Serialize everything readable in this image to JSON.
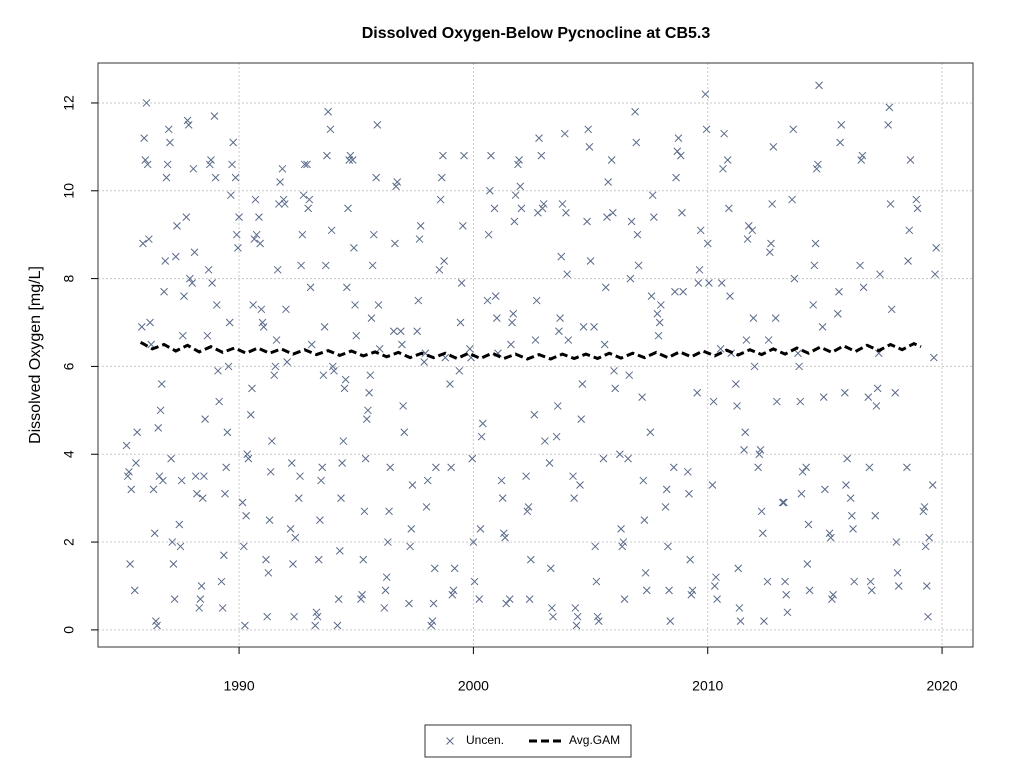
{
  "chart_data": {
    "type": "scatter",
    "title": "Dissolved Oxygen-Below Pycnocline at CB5.3",
    "y_label": "Dissolved Oxygen [mg/L]",
    "xlim": [
      1983.98,
      2021.32
    ],
    "ylim": [
      -0.39,
      12.91
    ],
    "xticks": [
      1990,
      2000,
      2010,
      2020
    ],
    "yticks": [
      0,
      2,
      4,
      6,
      8,
      10,
      12
    ],
    "grid": true,
    "legend": "bottom",
    "series": [
      {
        "name": "Uncen.",
        "color": "#5a6a8a",
        "marker": "x",
        "x": [
          1985.2,
          1985.25,
          1985.3,
          1985.35,
          1985.4,
          1985.55,
          1985.6,
          1985.65,
          1985.85,
          1985.9,
          1985.95,
          1986.0,
          1986.05,
          1986.1,
          1986.15,
          1986.2,
          1986.25,
          1986.35,
          1986.4,
          1986.45,
          1986.5,
          1986.55,
          1986.6,
          1986.65,
          1986.7,
          1986.75,
          1986.8,
          1986.85,
          1986.9,
          1986.95,
          1987.0,
          1987.05,
          1987.1,
          1987.15,
          1987.2,
          1987.25,
          1987.3,
          1987.35,
          1987.45,
          1987.5,
          1987.55,
          1987.6,
          1987.65,
          1987.75,
          1987.8,
          1987.85,
          1987.9,
          1988.0,
          1988.05,
          1988.1,
          1988.15,
          1988.2,
          1988.3,
          1988.35,
          1988.4,
          1988.45,
          1988.5,
          1988.55,
          1988.65,
          1988.7,
          1988.75,
          1988.8,
          1988.85,
          1988.95,
          1989.0,
          1989.05,
          1989.1,
          1989.15,
          1989.25,
          1989.3,
          1989.35,
          1989.4,
          1989.45,
          1989.5,
          1989.55,
          1989.6,
          1989.65,
          1989.7,
          1989.75,
          1989.85,
          1989.9,
          1989.95,
          1990.0,
          1990.15,
          1990.2,
          1990.25,
          1990.3,
          1990.35,
          1990.4,
          1990.5,
          1990.55,
          1990.6,
          1990.65,
          1990.7,
          1990.75,
          1990.85,
          1990.9,
          1990.95,
          1991.0,
          1991.05,
          1991.15,
          1991.2,
          1991.25,
          1991.3,
          1991.35,
          1991.4,
          1991.5,
          1991.55,
          1991.6,
          1991.65,
          1991.7,
          1991.75,
          1991.85,
          1991.9,
          1991.95,
          1992.0,
          1992.05,
          1992.2,
          1992.25,
          1992.3,
          1992.35,
          1992.4,
          1992.55,
          1992.6,
          1992.65,
          1992.7,
          1992.75,
          1992.8,
          1992.9,
          1992.95,
          1993.0,
          1993.05,
          1993.1,
          1993.25,
          1993.3,
          1993.35,
          1993.4,
          1993.45,
          1993.5,
          1993.55,
          1993.6,
          1993.65,
          1993.7,
          1993.75,
          1993.8,
          1993.9,
          1993.95,
          1994.0,
          1994.05,
          1994.2,
          1994.25,
          1994.3,
          1994.35,
          1994.4,
          1994.45,
          1994.5,
          1994.55,
          1994.6,
          1994.65,
          1994.7,
          1994.75,
          1994.85,
          1994.9,
          1994.95,
          1995.0,
          1995.2,
          1995.25,
          1995.3,
          1995.35,
          1995.4,
          1995.45,
          1995.5,
          1995.55,
          1995.6,
          1995.65,
          1995.7,
          1995.75,
          1995.85,
          1995.9,
          1995.95,
          1996.0,
          1996.2,
          1996.25,
          1996.3,
          1996.35,
          1996.4,
          1996.45,
          1996.6,
          1996.65,
          1996.7,
          1996.75,
          1996.9,
          1996.95,
          1997.0,
          1997.05,
          1997.25,
          1997.3,
          1997.35,
          1997.4,
          1997.6,
          1997.65,
          1997.7,
          1997.75,
          1997.9,
          1997.95,
          1998.0,
          1998.05,
          1998.2,
          1998.25,
          1998.3,
          1998.35,
          1998.4,
          1998.55,
          1998.6,
          1998.65,
          1998.7,
          1998.75,
          1998.8,
          1999.0,
          1999.05,
          1999.1,
          1999.15,
          1999.2,
          1999.4,
          1999.45,
          1999.5,
          1999.55,
          1999.6,
          1999.85,
          1999.9,
          1999.95,
          2000.0,
          2000.05,
          2000.25,
          2000.3,
          2000.35,
          2000.4,
          2000.6,
          2000.65,
          2000.7,
          2000.75,
          2000.9,
          2000.95,
          2001.0,
          2001.05,
          2001.2,
          2001.25,
          2001.3,
          2001.35,
          2001.4,
          2001.55,
          2001.6,
          2001.65,
          2001.7,
          2001.75,
          2001.8,
          2001.9,
          2001.95,
          2002.0,
          2002.05,
          2002.25,
          2002.3,
          2002.35,
          2002.4,
          2002.45,
          2002.6,
          2002.65,
          2002.7,
          2002.75,
          2002.8,
          2002.9,
          2002.95,
          2003.0,
          2003.05,
          2003.25,
          2003.3,
          2003.35,
          2003.4,
          2003.55,
          2003.6,
          2003.65,
          2003.7,
          2003.75,
          2003.8,
          2003.9,
          2003.95,
          2004.0,
          2004.05,
          2004.25,
          2004.3,
          2004.35,
          2004.4,
          2004.45,
          2004.55,
          2004.6,
          2004.65,
          2004.7,
          2004.85,
          2004.9,
          2004.95,
          2005.0,
          2005.15,
          2005.2,
          2005.25,
          2005.3,
          2005.35,
          2005.55,
          2005.6,
          2005.65,
          2005.7,
          2005.75,
          2005.9,
          2005.95,
          2006.0,
          2006.05,
          2006.25,
          2006.3,
          2006.35,
          2006.4,
          2006.45,
          2006.6,
          2006.65,
          2006.7,
          2006.75,
          2006.9,
          2006.95,
          2007.0,
          2007.05,
          2007.2,
          2007.25,
          2007.3,
          2007.35,
          2007.4,
          2007.55,
          2007.6,
          2007.65,
          2007.7,
          2007.85,
          2007.9,
          2007.95,
          2008.0,
          2008.2,
          2008.25,
          2008.3,
          2008.35,
          2008.4,
          2008.55,
          2008.6,
          2008.65,
          2008.7,
          2008.75,
          2008.85,
          2008.9,
          2008.95,
          2009.15,
          2009.2,
          2009.25,
          2009.3,
          2009.35,
          2009.55,
          2009.6,
          2009.65,
          2009.7,
          2009.9,
          2009.95,
          2010.0,
          2010.05,
          2010.2,
          2010.25,
          2010.3,
          2010.35,
          2010.4,
          2010.55,
          2010.6,
          2010.65,
          2010.7,
          2010.85,
          2010.9,
          2010.95,
          2011.0,
          2011.2,
          2011.25,
          2011.3,
          2011.35,
          2011.4,
          2011.55,
          2011.6,
          2011.65,
          2011.7,
          2011.75,
          2011.9,
          2011.95,
          2012.0,
          2012.15,
          2012.2,
          2012.25,
          2012.3,
          2012.35,
          2012.4,
          2012.55,
          2012.6,
          2012.65,
          2012.7,
          2012.75,
          2012.8,
          2012.9,
          2012.95,
          2013.2,
          2013.25,
          2013.3,
          2013.35,
          2013.4,
          2013.6,
          2013.65,
          2013.7,
          2013.85,
          2013.9,
          2013.95,
          2014.0,
          2014.05,
          2014.2,
          2014.25,
          2014.3,
          2014.35,
          2014.5,
          2014.55,
          2014.6,
          2014.65,
          2014.7,
          2014.75,
          2014.9,
          2014.95,
          2015.0,
          2015.2,
          2015.25,
          2015.3,
          2015.35,
          2015.55,
          2015.6,
          2015.65,
          2015.7,
          2015.85,
          2015.9,
          2015.95,
          2016.1,
          2016.15,
          2016.2,
          2016.25,
          2016.5,
          2016.55,
          2016.6,
          2016.65,
          2016.85,
          2016.9,
          2016.95,
          2017.0,
          2017.15,
          2017.2,
          2017.25,
          2017.3,
          2017.35,
          2017.7,
          2017.75,
          2017.8,
          2017.85,
          2018.0,
          2018.05,
          2018.1,
          2018.15,
          2018.5,
          2018.55,
          2018.6,
          2018.65,
          2018.9,
          2018.95,
          2019.2,
          2019.25,
          2019.3,
          2019.35,
          2019.4,
          2019.45,
          2019.6,
          2019.65,
          2019.7,
          2019.75
        ],
        "values": [
          4.2,
          3.5,
          3.6,
          1.5,
          3.2,
          0.9,
          3.8,
          4.5,
          6.9,
          8.8,
          11.2,
          10.7,
          12.0,
          10.6,
          8.9,
          7.0,
          6.5,
          3.2,
          2.2,
          0.2,
          0.1,
          4.6,
          3.5,
          5.0,
          5.6,
          3.4,
          7.7,
          8.4,
          10.3,
          10.6,
          11.4,
          11.1,
          3.9,
          2.0,
          1.5,
          0.7,
          8.5,
          9.2,
          2.4,
          1.9,
          3.4,
          6.7,
          7.6,
          9.4,
          11.6,
          11.5,
          8.0,
          7.9,
          10.5,
          8.6,
          3.5,
          3.1,
          0.5,
          0.7,
          1.0,
          3.0,
          3.5,
          4.8,
          6.7,
          8.2,
          10.6,
          10.7,
          7.9,
          11.7,
          10.3,
          7.4,
          5.9,
          5.2,
          1.1,
          0.5,
          1.7,
          3.1,
          3.7,
          4.5,
          6.0,
          7.0,
          9.9,
          10.6,
          11.1,
          10.3,
          9.0,
          8.7,
          9.4,
          2.9,
          1.9,
          0.1,
          2.6,
          4.0,
          3.9,
          4.9,
          5.5,
          7.4,
          8.9,
          9.8,
          9.0,
          9.4,
          8.8,
          7.3,
          7.0,
          6.9,
          1.6,
          0.3,
          1.3,
          2.5,
          3.6,
          4.3,
          5.8,
          6.0,
          6.6,
          8.2,
          9.7,
          10.2,
          10.5,
          9.8,
          9.7,
          7.3,
          6.1,
          2.3,
          3.8,
          1.5,
          0.3,
          2.1,
          3.0,
          3.5,
          8.3,
          9.0,
          9.9,
          10.6,
          10.6,
          9.6,
          9.8,
          7.8,
          6.5,
          0.1,
          0.4,
          0.3,
          1.6,
          2.5,
          3.4,
          3.7,
          5.8,
          6.9,
          8.3,
          10.8,
          11.8,
          11.4,
          9.1,
          6.0,
          5.9,
          0.1,
          0.7,
          1.8,
          3.0,
          3.8,
          4.3,
          5.5,
          5.7,
          7.8,
          9.6,
          10.7,
          10.8,
          10.7,
          8.7,
          7.4,
          6.7,
          0.7,
          0.8,
          1.6,
          2.7,
          3.9,
          4.8,
          5.0,
          5.4,
          5.8,
          7.1,
          8.3,
          9.0,
          10.3,
          11.5,
          7.4,
          6.4,
          0.5,
          0.9,
          1.2,
          2.0,
          2.7,
          3.7,
          6.8,
          8.8,
          10.1,
          10.2,
          6.8,
          6.5,
          5.1,
          4.5,
          0.6,
          1.9,
          2.3,
          3.3,
          6.8,
          7.5,
          8.9,
          9.2,
          6.1,
          6.3,
          2.8,
          3.4,
          0.1,
          0.2,
          0.6,
          1.4,
          3.7,
          8.2,
          9.8,
          10.3,
          10.8,
          8.4,
          6.2,
          5.6,
          3.7,
          0.8,
          0.9,
          1.4,
          5.9,
          7.0,
          7.9,
          9.2,
          10.8,
          6.4,
          6.2,
          3.9,
          2.0,
          1.1,
          0.7,
          2.3,
          4.4,
          4.7,
          7.5,
          9.0,
          10.0,
          10.8,
          9.6,
          7.6,
          7.1,
          6.3,
          3.4,
          3.0,
          2.2,
          2.1,
          0.6,
          0.7,
          6.5,
          7.0,
          7.2,
          9.3,
          9.9,
          10.6,
          10.7,
          10.1,
          9.6,
          3.5,
          2.7,
          2.8,
          0.7,
          1.6,
          4.9,
          6.6,
          7.5,
          9.5,
          11.2,
          10.8,
          9.6,
          9.7,
          4.3,
          3.8,
          1.4,
          0.5,
          0.3,
          4.4,
          5.1,
          6.8,
          7.1,
          8.5,
          9.7,
          11.3,
          9.5,
          8.1,
          6.6,
          3.5,
          3.0,
          0.5,
          0.1,
          0.3,
          3.3,
          4.8,
          5.6,
          6.9,
          9.3,
          11.4,
          11.0,
          8.4,
          6.9,
          1.9,
          1.1,
          0.3,
          0.2,
          3.9,
          6.5,
          7.8,
          9.4,
          10.2,
          10.7,
          9.5,
          5.9,
          5.5,
          4.0,
          2.3,
          1.9,
          2.0,
          0.7,
          3.9,
          5.8,
          8.0,
          9.3,
          11.8,
          11.1,
          9.0,
          8.3,
          5.3,
          3.4,
          2.5,
          1.3,
          0.9,
          4.5,
          7.6,
          9.9,
          9.4,
          7.2,
          6.7,
          7.0,
          7.4,
          2.8,
          3.2,
          1.9,
          0.9,
          0.2,
          3.7,
          7.7,
          10.3,
          10.9,
          11.2,
          10.8,
          9.5,
          7.7,
          3.6,
          3.1,
          1.6,
          0.8,
          0.9,
          5.4,
          7.9,
          8.2,
          9.1,
          12.2,
          11.4,
          8.8,
          7.9,
          3.3,
          5.2,
          1.0,
          1.2,
          0.7,
          6.4,
          7.9,
          10.5,
          11.3,
          10.7,
          9.6,
          7.6,
          6.3,
          5.6,
          5.1,
          1.4,
          0.5,
          0.2,
          4.1,
          4.5,
          6.6,
          8.9,
          9.2,
          9.1,
          7.1,
          6.0,
          3.7,
          4.0,
          4.1,
          2.7,
          2.2,
          0.2,
          1.1,
          6.6,
          8.6,
          8.8,
          9.7,
          11.0,
          7.1,
          5.2,
          2.9,
          2.9,
          1.1,
          0.8,
          0.4,
          9.8,
          11.4,
          8.0,
          6.3,
          6.0,
          5.2,
          3.1,
          3.6,
          3.7,
          1.5,
          2.4,
          0.9,
          7.4,
          8.3,
          8.8,
          10.5,
          10.6,
          12.4,
          6.9,
          5.3,
          3.2,
          2.2,
          2.1,
          0.7,
          0.8,
          7.2,
          7.7,
          11.1,
          11.5,
          5.4,
          3.3,
          3.9,
          3.0,
          2.6,
          2.3,
          1.1,
          8.3,
          10.7,
          10.8,
          7.8,
          5.3,
          3.7,
          1.1,
          0.9,
          2.6,
          5.1,
          5.5,
          6.3,
          8.1,
          11.5,
          11.9,
          9.7,
          7.3,
          5.4,
          2.0,
          1.3,
          1.0,
          3.7,
          8.4,
          9.1,
          10.7,
          9.8,
          9.6,
          2.7,
          2.8,
          1.9,
          1.0,
          0.3,
          2.1,
          3.3,
          6.2,
          8.1,
          8.7
        ]
      },
      {
        "name": "Avg.GAM",
        "color": "#000000",
        "line": "dashed",
        "x": [
          1985.8,
          1986.3,
          1986.8,
          1987.3,
          1987.8,
          1988.3,
          1988.8,
          1989.3,
          1989.8,
          1990.3,
          1990.8,
          1991.3,
          1991.8,
          1992.3,
          1992.8,
          1993.3,
          1993.8,
          1994.3,
          1994.8,
          1995.3,
          1995.8,
          1996.3,
          1996.8,
          1997.3,
          1997.8,
          1998.3,
          1998.8,
          1999.3,
          1999.8,
          2000.3,
          2000.8,
          2001.3,
          2001.8,
          2002.3,
          2002.8,
          2003.3,
          2003.8,
          2004.3,
          2004.8,
          2005.3,
          2005.8,
          2006.3,
          2006.8,
          2007.3,
          2007.8,
          2008.3,
          2008.8,
          2009.3,
          2009.8,
          2010.3,
          2010.8,
          2011.3,
          2011.8,
          2012.3,
          2012.8,
          2013.3,
          2013.8,
          2014.3,
          2014.8,
          2015.3,
          2015.8,
          2016.3,
          2016.8,
          2017.3,
          2017.8,
          2018.3,
          2018.8,
          2019.1
        ],
        "values": [
          6.55,
          6.4,
          6.5,
          6.35,
          6.48,
          6.33,
          6.45,
          6.32,
          6.42,
          6.3,
          6.42,
          6.3,
          6.4,
          6.28,
          6.38,
          6.27,
          6.36,
          6.25,
          6.35,
          6.24,
          6.33,
          6.22,
          6.32,
          6.2,
          6.3,
          6.2,
          6.3,
          6.18,
          6.3,
          6.18,
          6.3,
          6.18,
          6.28,
          6.17,
          6.27,
          6.17,
          6.28,
          6.18,
          6.28,
          6.18,
          6.3,
          6.19,
          6.3,
          6.2,
          6.32,
          6.2,
          6.33,
          6.22,
          6.35,
          6.24,
          6.37,
          6.26,
          6.38,
          6.27,
          6.4,
          6.28,
          6.42,
          6.3,
          6.44,
          6.32,
          6.47,
          6.34,
          6.48,
          6.36,
          6.5,
          6.38,
          6.52,
          6.45
        ]
      }
    ]
  }
}
